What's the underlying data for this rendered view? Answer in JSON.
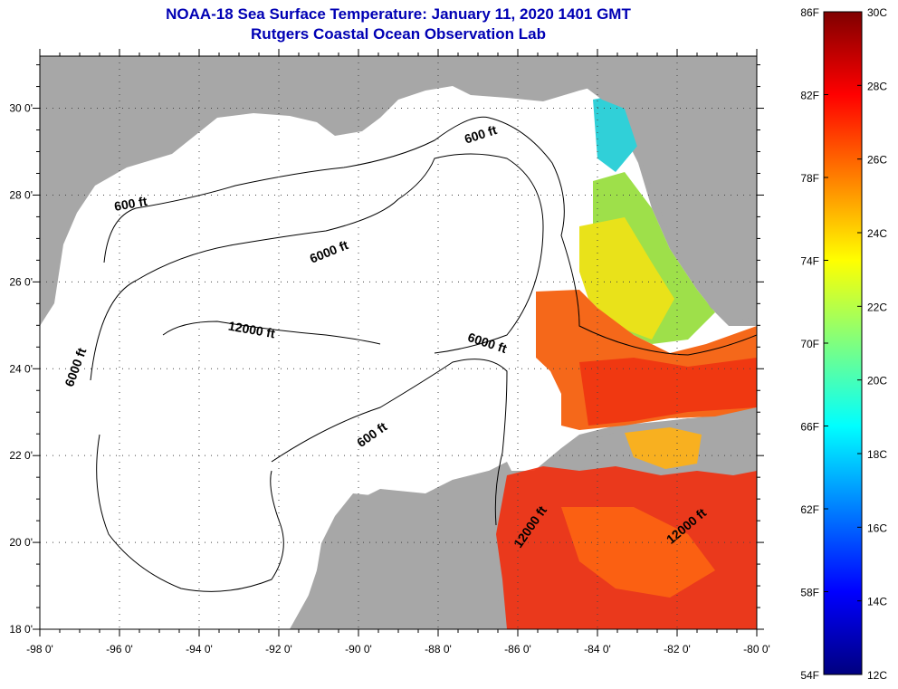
{
  "title": {
    "line1": "NOAA-18 Sea Surface Temperature:  January 11, 2020 1401 GMT",
    "line2": "Rutgers Coastal Ocean Observation Lab"
  },
  "map": {
    "lon_ticks": [
      "-98 0'",
      "-96 0'",
      "-94 0'",
      "-92 0'",
      "-90 0'",
      "-88 0'",
      "-86 0'",
      "-84 0'",
      "-82 0'",
      "-80 0'"
    ],
    "lat_ticks": [
      "18 0'",
      "20 0'",
      "22 0'",
      "24 0'",
      "26 0'",
      "28 0'",
      "30 0'"
    ],
    "lon_range": [
      -98,
      -80
    ],
    "lat_range": [
      18,
      31.2
    ],
    "land_color": "#a7a7a7",
    "water_color": "#ffffff",
    "contours": [
      {
        "label": "600 ft",
        "lon": -86.9,
        "lat": 29.3,
        "rot": -18
      },
      {
        "label": "600 ft",
        "lon": -95.7,
        "lat": 27.7,
        "rot": -10
      },
      {
        "label": "6000 ft",
        "lon": -90.7,
        "lat": 26.6,
        "rot": -22
      },
      {
        "label": "12000 ft",
        "lon": -92.7,
        "lat": 24.8,
        "rot": 10
      },
      {
        "label": "6000 ft",
        "lon": -86.8,
        "lat": 24.5,
        "rot": 18
      },
      {
        "label": "6000 ft",
        "lon": -97.0,
        "lat": 24.0,
        "rot": -70
      },
      {
        "label": "600 ft",
        "lon": -89.6,
        "lat": 22.4,
        "rot": -35
      },
      {
        "label": "12000 ft",
        "lon": -85.6,
        "lat": 20.3,
        "rot": -55
      },
      {
        "label": "12000 ft",
        "lon": -81.7,
        "lat": 20.3,
        "rot": -40
      }
    ]
  },
  "colorbar": {
    "f_labels": [
      "86F",
      "82F",
      "78F",
      "74F",
      "70F",
      "66F",
      "62F",
      "58F",
      "54F"
    ],
    "c_labels": [
      "30C",
      "28C",
      "26C",
      "24C",
      "22C",
      "20C",
      "18C",
      "16C",
      "14C",
      "12C"
    ],
    "range_c": [
      12,
      30
    ],
    "colors": [
      "#00007f",
      "#0000ff",
      "#007fff",
      "#00ffff",
      "#7fff7f",
      "#ffff00",
      "#ff7f00",
      "#ff0000",
      "#7f0000"
    ]
  }
}
